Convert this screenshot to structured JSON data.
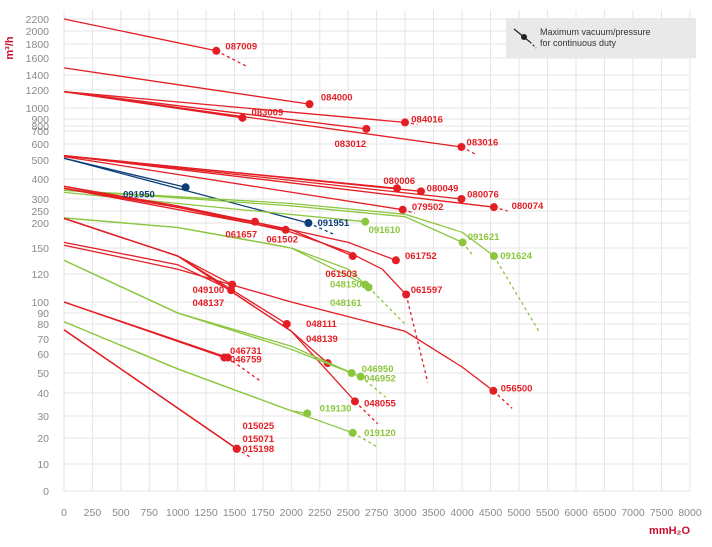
{
  "chart_data": {
    "type": "line",
    "title": "",
    "ylabel": "m³/h",
    "xlabel": "mmH₂O",
    "x_scale": "linear",
    "y_scale": "log",
    "xlim": [
      0,
      8000
    ],
    "ylim": [
      0,
      2200
    ],
    "xticks": [
      0,
      250,
      500,
      750,
      1000,
      1250,
      1500,
      1750,
      2000,
      2250,
      2500,
      2750,
      3000,
      3500,
      4000,
      4500,
      5000,
      5500,
      6000,
      6500,
      7000,
      7500,
      8000
    ],
    "xtick_labels": [
      "0",
      "250",
      "500",
      "750",
      "1000",
      "1250",
      "1500",
      "1750",
      "2000",
      "2250",
      "2500",
      "2750",
      "3000",
      "3500",
      "4000",
      "4500",
      "5000",
      "5500",
      "6000",
      "6500",
      "7000",
      "7500",
      "8000"
    ],
    "yticks": [
      0,
      10,
      20,
      30,
      40,
      50,
      60,
      70,
      80,
      90,
      100,
      120,
      150,
      200,
      250,
      300,
      400,
      500,
      600,
      700,
      800,
      900,
      1000,
      1200,
      1400,
      1600,
      1800,
      2000,
      2200
    ],
    "ytick_labels": [
      "0",
      "10",
      "20",
      "30",
      "40",
      "50",
      "60",
      "70",
      "80",
      "90",
      "100",
      "120",
      "150",
      "200",
      "250",
      "300",
      "400",
      "500",
      "600",
      "700",
      "800",
      "900",
      "1000",
      "1200",
      "1400",
      "1600",
      "1800",
      "2000",
      "2200"
    ],
    "grid": true,
    "legend": {
      "text": [
        "Maximum vacuum/pressure",
        "for continuous duty"
      ],
      "position": "top-right"
    },
    "colors": {
      "red": "#e31e24",
      "green": "#8cc63f",
      "blue": "#0d3d78",
      "grid": "#e6e6e6",
      "tick": "#8a8a8a",
      "axis_title": "#c8102e"
    },
    "series": [
      {
        "name": "087009",
        "color": "red",
        "x": [
          0,
          1340
        ],
        "y": [
          2200,
          1700
        ],
        "ext": [
          1620,
          1490
        ]
      },
      {
        "name": "084000",
        "color": "red",
        "x": [
          0,
          2160
        ],
        "y": [
          1480,
          1040
        ],
        "ext": [
          null,
          null
        ]
      },
      {
        "name": "084016",
        "color": "red",
        "x": [
          0,
          3000
        ],
        "y": [
          1180,
          850
        ],
        "ext": [
          3220,
          820
        ]
      },
      {
        "name": "083009",
        "color": "red",
        "x": [
          0,
          1570
        ],
        "y": [
          1180,
          910
        ],
        "ext": [
          null,
          null
        ]
      },
      {
        "name": "083012",
        "color": "red",
        "x": [
          0,
          2660
        ],
        "y": [
          1180,
          740
        ],
        "ext": [
          null,
          null
        ]
      },
      {
        "name": "083016",
        "color": "red",
        "x": [
          0,
          3990
        ],
        "y": [
          1180,
          580
        ],
        "ext": [
          4260,
          530
        ]
      },
      {
        "name": "080006",
        "color": "red",
        "x": [
          0,
          2930
        ],
        "y": [
          525,
          350
        ],
        "ext": [
          null,
          null
        ]
      },
      {
        "name": "080049",
        "color": "red",
        "x": [
          0,
          3280
        ],
        "y": [
          525,
          335
        ],
        "ext": [
          null,
          null
        ]
      },
      {
        "name": "080076",
        "color": "red",
        "x": [
          0,
          3990
        ],
        "y": [
          525,
          300
        ],
        "ext": [
          null,
          null
        ]
      },
      {
        "name": "080074",
        "color": "red",
        "x": [
          0,
          4560
        ],
        "y": [
          525,
          265
        ],
        "ext": [
          4800,
          250
        ]
      },
      {
        "name": "079502",
        "color": "red",
        "x": [
          0,
          2980
        ],
        "y": [
          520,
          255
        ],
        "ext": [
          3170,
          240
        ]
      },
      {
        "name": "091950",
        "color": "blue",
        "x": [
          0,
          1070
        ],
        "y": [
          510,
          355
        ],
        "ext": [
          null,
          null
        ]
      },
      {
        "name": "091951",
        "color": "blue",
        "x": [
          0,
          2150
        ],
        "y": [
          510,
          200
        ],
        "ext": [
          2380,
          175
        ]
      },
      {
        "name": "091610",
        "color": "green",
        "x": [
          0,
          2650
        ],
        "y": [
          330,
          205
        ],
        "ext": [
          null,
          null
        ]
      },
      {
        "name": "091621",
        "color": "green",
        "x": [
          0,
          1000,
          2000,
          3000,
          4010
        ],
        "y": [
          340,
          305,
          270,
          225,
          160
        ],
        "ext": [
          4200,
          140
        ]
      },
      {
        "name": "091624",
        "color": "green",
        "x": [
          0,
          1000,
          2000,
          3000,
          4000,
          4560
        ],
        "y": [
          340,
          310,
          280,
          235,
          180,
          140
        ],
        "ext": [
          5350,
          75
        ]
      },
      {
        "name": "061657",
        "color": "red",
        "x": [
          0,
          1680
        ],
        "y": [
          360,
          205
        ],
        "ext": [
          null,
          null
        ]
      },
      {
        "name": "061502",
        "color": "red",
        "x": [
          0,
          1950
        ],
        "y": [
          350,
          185
        ],
        "ext": [
          null,
          null
        ]
      },
      {
        "name": "061503",
        "color": "red",
        "x": [
          0,
          1000,
          2000,
          2540
        ],
        "y": [
          350,
          265,
          185,
          140
        ],
        "ext": [
          null,
          null
        ]
      },
      {
        "name": "061752",
        "color": "red",
        "x": [
          0,
          1000,
          2000,
          2500,
          2920
        ],
        "y": [
          360,
          270,
          185,
          160,
          135
        ],
        "ext": [
          null,
          null
        ]
      },
      {
        "name": "061597",
        "color": "red",
        "x": [
          0,
          1000,
          2000,
          2500,
          2800,
          3020
        ],
        "y": [
          350,
          265,
          180,
          145,
          125,
          105
        ],
        "ext": [
          3400,
          45
        ]
      },
      {
        "name": "048150",
        "color": "green",
        "x": [
          0,
          1000,
          2000,
          2650
        ],
        "y": [
          220,
          190,
          150,
          112
        ],
        "ext": [
          null,
          null
        ]
      },
      {
        "name": "048161",
        "color": "green",
        "x": [
          0,
          1000,
          2000,
          2500,
          2680
        ],
        "y": [
          220,
          190,
          150,
          125,
          110
        ],
        "ext": [
          3000,
          80
        ]
      },
      {
        "name": "049100",
        "color": "red",
        "x": [
          0,
          1000,
          1470
        ],
        "y": [
          160,
          130,
          108
        ],
        "ext": [
          null,
          null
        ]
      },
      {
        "name": "048137",
        "color": "red",
        "x": [
          0,
          1000,
          1480
        ],
        "y": [
          218,
          140,
          112
        ],
        "ext": [
          null,
          null
        ]
      },
      {
        "name": "048111",
        "color": "red",
        "x": [
          0,
          1000,
          1960
        ],
        "y": [
          218,
          140,
          80
        ],
        "ext": [
          null,
          null
        ]
      },
      {
        "name": "048139",
        "color": "red",
        "x": [
          0,
          1000,
          2000,
          2320
        ],
        "y": [
          218,
          140,
          75,
          55
        ],
        "ext": [
          null,
          null
        ]
      },
      {
        "name": "048055",
        "color": "red",
        "x": [
          0,
          1000,
          2000,
          2560
        ],
        "y": [
          218,
          140,
          75,
          36
        ],
        "ext": [
          2760,
          26
        ]
      },
      {
        "name": "046950",
        "color": "green",
        "x": [
          0,
          1000,
          2000,
          2530
        ],
        "y": [
          135,
          90,
          65,
          50
        ],
        "ext": [
          null,
          null
        ]
      },
      {
        "name": "046952",
        "color": "green",
        "x": [
          0,
          1000,
          2000,
          2610
        ],
        "y": [
          135,
          90,
          63,
          48
        ],
        "ext": [
          2830,
          38
        ]
      },
      {
        "name": "046731",
        "color": "red",
        "x": [
          0,
          1410
        ],
        "y": [
          100,
          58
        ],
        "ext": [
          null,
          null
        ]
      },
      {
        "name": "046759",
        "color": "red",
        "x": [
          0,
          1440
        ],
        "y": [
          100,
          58
        ],
        "ext": [
          1720,
          46
        ]
      },
      {
        "name": "056500",
        "color": "red",
        "x": [
          0,
          1000,
          2000,
          3000,
          4000,
          4550
        ],
        "y": [
          155,
          125,
          100,
          75,
          53,
          41
        ],
        "ext": [
          4880,
          33
        ]
      },
      {
        "name": "019130",
        "color": "green",
        "x": [
          0,
          1000,
          2000,
          2140
        ],
        "y": [
          82,
          52,
          32,
          31
        ],
        "ext": [
          null,
          null
        ]
      },
      {
        "name": "019120",
        "color": "green",
        "x": [
          0,
          1000,
          2000,
          2540
        ],
        "y": [
          82,
          52,
          32,
          22
        ],
        "ext": [
          2750,
          16
        ]
      },
      {
        "name": "015025",
        "color": "red",
        "x": [
          0,
          1520
        ],
        "y": [
          76,
          15
        ],
        "ext": [
          null,
          null
        ]
      },
      {
        "name": "015071",
        "color": "red",
        "x": [
          0,
          1520
        ],
        "y": [
          76,
          15
        ],
        "ext": [
          null,
          null
        ]
      },
      {
        "name": "015198",
        "color": "red",
        "x": [
          0,
          1520
        ],
        "y": [
          76,
          15
        ],
        "ext": [
          1640,
          12
        ]
      }
    ],
    "labels": [
      {
        "text": "087009",
        "color": "red",
        "x": 1420,
        "y": 1760
      },
      {
        "text": "084000",
        "color": "red",
        "x": 2260,
        "y": 1110
      },
      {
        "text": "084016",
        "color": "red",
        "x": 3110,
        "y": 890
      },
      {
        "text": "083009",
        "color": "red",
        "x": 1650,
        "y": 960
      },
      {
        "text": "083012",
        "color": "red",
        "x": 2380,
        "y": 600
      },
      {
        "text": "083016",
        "color": "red",
        "x": 4080,
        "y": 610
      },
      {
        "text": "080006",
        "color": "red",
        "x": 2810,
        "y": 390
      },
      {
        "text": "080049",
        "color": "red",
        "x": 3380,
        "y": 350
      },
      {
        "text": "080076",
        "color": "red",
        "x": 4090,
        "y": 320
      },
      {
        "text": "080074",
        "color": "red",
        "x": 4870,
        "y": 270
      },
      {
        "text": "079502",
        "color": "red",
        "x": 3120,
        "y": 265
      },
      {
        "text": "091950",
        "color": "blue",
        "x": 520,
        "y": 320
      },
      {
        "text": "091951",
        "color": "blue",
        "x": 2230,
        "y": 200
      },
      {
        "text": "091610",
        "color": "green",
        "x": 2680,
        "y": 185
      },
      {
        "text": "091621",
        "color": "green",
        "x": 4100,
        "y": 170
      },
      {
        "text": "091624",
        "color": "green",
        "x": 4670,
        "y": 140
      },
      {
        "text": "061657",
        "color": "red",
        "x": 1420,
        "y": 175
      },
      {
        "text": "061502",
        "color": "red",
        "x": 1780,
        "y": 165
      },
      {
        "text": "061503",
        "color": "red",
        "x": 2300,
        "y": 120
      },
      {
        "text": "061752",
        "color": "red",
        "x": 3000,
        "y": 140
      },
      {
        "text": "061597",
        "color": "red",
        "x": 3100,
        "y": 108
      },
      {
        "text": "048150",
        "color": "green",
        "x": 2340,
        "y": 112
      },
      {
        "text": "048161",
        "color": "green",
        "x": 2340,
        "y": 99
      },
      {
        "text": "049100",
        "color": "red",
        "x": 1130,
        "y": 108
      },
      {
        "text": "048137",
        "color": "red",
        "x": 1130,
        "y": 99
      },
      {
        "text": "048111",
        "color": "red",
        "x": 2130,
        "y": 80
      },
      {
        "text": "048139",
        "color": "red",
        "x": 2130,
        "y": 70
      },
      {
        "text": "048055",
        "color": "red",
        "x": 2640,
        "y": 35
      },
      {
        "text": "046950",
        "color": "green",
        "x": 2620,
        "y": 52
      },
      {
        "text": "046952",
        "color": "green",
        "x": 2640,
        "y": 47
      },
      {
        "text": "046731",
        "color": "red",
        "x": 1460,
        "y": 62
      },
      {
        "text": "046759",
        "color": "red",
        "x": 1460,
        "y": 57
      },
      {
        "text": "056500",
        "color": "red",
        "x": 4680,
        "y": 42
      },
      {
        "text": "019130",
        "color": "green",
        "x": 2250,
        "y": 33
      },
      {
        "text": "019120",
        "color": "green",
        "x": 2640,
        "y": 22
      },
      {
        "text": "015025",
        "color": "red",
        "x": 1570,
        "y": 25
      },
      {
        "text": "015071",
        "color": "red",
        "x": 1570,
        "y": 19.5
      },
      {
        "text": "015198",
        "color": "red",
        "x": 1570,
        "y": 15
      }
    ]
  }
}
